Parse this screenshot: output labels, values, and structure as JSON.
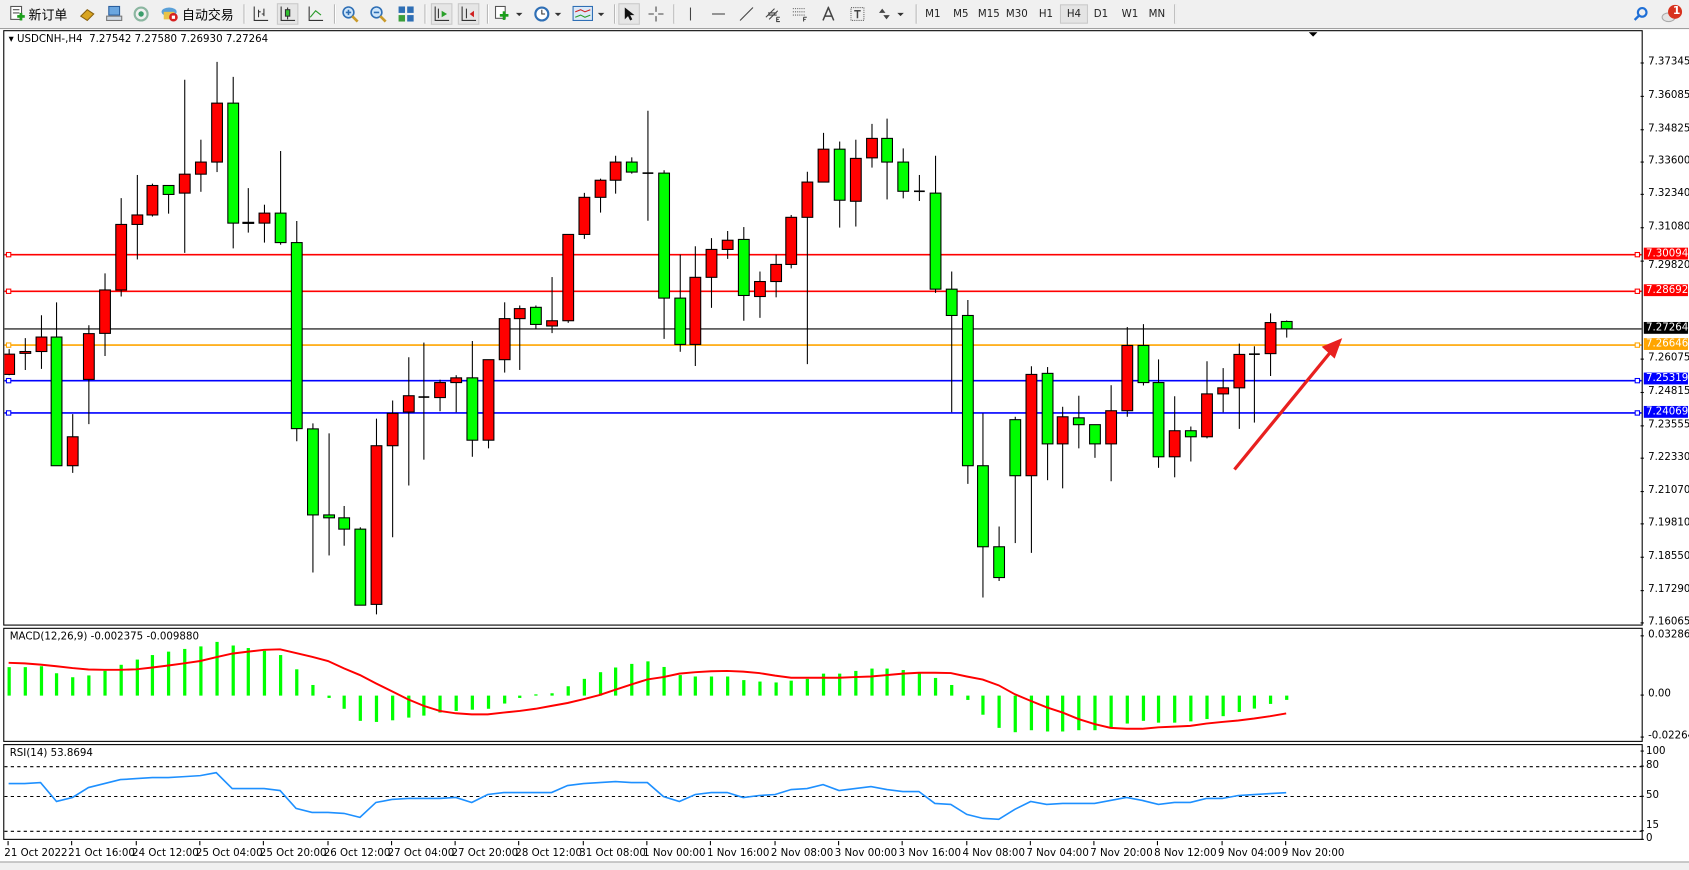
{
  "toolbar": {
    "new_order_label": "新订单",
    "auto_trading_label": "自动交易",
    "timeframes": [
      "M1",
      "M5",
      "M15",
      "M30",
      "H1",
      "H4",
      "D1",
      "W1",
      "MN"
    ],
    "selected_timeframe": "H4",
    "notification_count": "1"
  },
  "chart": {
    "symbol": "USDCNH-,H4",
    "open": "7.27542",
    "high": "7.27580",
    "low": "7.26930",
    "close": "7.27264"
  },
  "price_axis": {
    "ticks": [
      "7.37345",
      "7.36085",
      "7.34825",
      "7.33600",
      "7.32340",
      "7.31080",
      "7.29820",
      "7.26075",
      "7.24815",
      "7.23555",
      "7.22330",
      "7.21070",
      "7.19810",
      "7.18550",
      "7.17290",
      "7.16065"
    ],
    "levels": [
      {
        "label": "7.30094",
        "color": "#ff0000"
      },
      {
        "label": "7.28692",
        "color": "#ff0000"
      },
      {
        "label": "7.27264",
        "color": "#000000"
      },
      {
        "label": "7.26646",
        "color": "#ffa500"
      },
      {
        "label": "7.25319",
        "color": "#0000ff"
      },
      {
        "label": "7.24069",
        "color": "#0000ff"
      }
    ]
  },
  "time_axis": [
    "21 Oct 2022",
    "21 Oct 16:00",
    "24 Oct 12:00",
    "25 Oct 04:00",
    "25 Oct 20:00",
    "26 Oct 12:00",
    "27 Oct 04:00",
    "27 Oct 20:00",
    "28 Oct 12:00",
    "31 Oct 08:00",
    "1 Nov 00:00",
    "1 Nov 16:00",
    "2 Nov 08:00",
    "3 Nov 00:00",
    "3 Nov 16:00",
    "4 Nov 08:00",
    "7 Nov 04:00",
    "7 Nov 20:00",
    "8 Nov 12:00",
    "9 Nov 04:00",
    "9 Nov 20:00"
  ],
  "macd": {
    "title": "MACD(12,26,9) -0.002375 -0.009880",
    "axis": [
      "0.032861",
      "0.00",
      "-0.022641"
    ]
  },
  "rsi": {
    "title": "RSI(14) 53.8694",
    "axis": [
      "100",
      "80",
      "50",
      "15",
      "0"
    ]
  },
  "colors": {
    "bull": "#ff0000",
    "bear": "#00ff00",
    "macd_hist": "#00ff00",
    "macd_signal": "#ff0000",
    "rsi": "#1e90ff",
    "arrow": "#e8201f"
  },
  "chart_data": [
    {
      "type": "candlestick",
      "ylim": [
        7.16065,
        7.37345
      ],
      "columns": [
        "open",
        "high",
        "low",
        "close"
      ],
      "ohlc": [
        [
          7.2553,
          7.2649,
          7.255,
          7.263
        ],
        [
          7.2633,
          7.2691,
          7.257,
          7.264
        ],
        [
          7.264,
          7.2778,
          7.2574,
          7.2695
        ],
        [
          7.2695,
          7.2827,
          7.2206,
          7.2206
        ],
        [
          7.2206,
          7.2402,
          7.2179,
          7.2316
        ],
        [
          7.2534,
          7.274,
          7.2364,
          7.2708
        ],
        [
          7.2709,
          7.2937,
          7.2623,
          7.2874
        ],
        [
          7.2874,
          7.3223,
          7.2849,
          7.3123
        ],
        [
          7.3123,
          7.3311,
          7.299,
          7.3159
        ],
        [
          7.3159,
          7.3278,
          7.3153,
          7.3271
        ],
        [
          7.3271,
          7.3271,
          7.3164,
          7.3237
        ],
        [
          7.3242,
          7.3673,
          7.3015,
          7.3314
        ],
        [
          7.3314,
          7.3445,
          7.3247,
          7.336
        ],
        [
          7.336,
          7.3741,
          7.3322,
          7.3584
        ],
        [
          7.3584,
          7.3684,
          7.3032,
          7.3128
        ],
        [
          7.313,
          7.3261,
          7.3092,
          7.3131
        ],
        [
          7.3128,
          7.3198,
          7.3054,
          7.3166
        ],
        [
          7.3166,
          7.3402,
          7.3046,
          7.3054
        ],
        [
          7.3054,
          7.3136,
          7.2299,
          7.2347
        ],
        [
          7.2346,
          7.2367,
          7.18,
          7.2019
        ],
        [
          7.2019,
          7.2329,
          7.1865,
          7.2008
        ],
        [
          7.2008,
          7.2053,
          7.1902,
          7.1965
        ],
        [
          7.1965,
          7.1972,
          7.1676,
          7.1676
        ],
        [
          7.1679,
          7.2385,
          7.1641,
          7.2282
        ],
        [
          7.2282,
          7.2454,
          7.1934,
          7.2405
        ],
        [
          7.241,
          7.2618,
          7.2131,
          7.2472
        ],
        [
          7.2467,
          7.2674,
          7.2229,
          7.2467
        ],
        [
          7.2465,
          7.2533,
          7.2413,
          7.2522
        ],
        [
          7.2522,
          7.255,
          7.2409,
          7.254
        ],
        [
          7.254,
          7.268,
          7.224,
          7.2303
        ],
        [
          7.2303,
          7.2609,
          7.2272,
          7.2609
        ],
        [
          7.2609,
          7.2827,
          7.256,
          7.2765
        ],
        [
          7.2765,
          7.2815,
          7.257,
          7.2803
        ],
        [
          7.2808,
          7.2815,
          7.2725,
          7.2743
        ],
        [
          7.2737,
          7.2923,
          7.271,
          7.2757
        ],
        [
          7.2757,
          7.3085,
          7.2749,
          7.3085
        ],
        [
          7.3085,
          7.3243,
          7.3068,
          7.3226
        ],
        [
          7.3226,
          7.3297,
          7.3168,
          7.3291
        ],
        [
          7.3291,
          7.3384,
          7.324,
          7.336
        ],
        [
          7.336,
          7.3378,
          7.3316,
          7.3322
        ],
        [
          7.3318,
          7.3555,
          7.3137,
          7.3318
        ],
        [
          7.3318,
          7.3329,
          7.2688,
          7.2843
        ],
        [
          7.2843,
          7.3008,
          7.2639,
          7.2667
        ],
        [
          7.2667,
          7.304,
          7.2585,
          7.2922
        ],
        [
          7.2922,
          7.3071,
          7.2806,
          7.3028
        ],
        [
          7.3028,
          7.3098,
          7.2992,
          7.3063
        ],
        [
          7.3066,
          7.3113,
          7.2757,
          7.2853
        ],
        [
          7.2849,
          7.2944,
          7.2768,
          7.2906
        ],
        [
          7.2906,
          7.3008,
          7.2846,
          7.2971
        ],
        [
          7.2971,
          7.3159,
          7.2956,
          7.315
        ],
        [
          7.315,
          7.3323,
          7.2592,
          7.3284
        ],
        [
          7.3284,
          7.3471,
          7.3284,
          7.3409
        ],
        [
          7.3409,
          7.3438,
          7.3111,
          7.3215
        ],
        [
          7.3211,
          7.3445,
          7.3115,
          7.3374
        ],
        [
          7.3376,
          7.3505,
          7.3339,
          7.345
        ],
        [
          7.345,
          7.3525,
          7.3218,
          7.336
        ],
        [
          7.336,
          7.3412,
          7.3222,
          7.3249
        ],
        [
          7.3249,
          7.3311,
          7.3212,
          7.3249
        ],
        [
          7.3242,
          7.3384,
          7.2863,
          7.2877
        ],
        [
          7.2877,
          7.2944,
          7.2409,
          7.2777
        ],
        [
          7.2777,
          7.2836,
          7.2137,
          7.2206
        ],
        [
          7.2206,
          7.2405,
          7.1705,
          7.1898
        ],
        [
          7.1898,
          7.1975,
          7.1768,
          7.1781
        ],
        [
          7.2381,
          7.2392,
          7.1912,
          7.2168
        ],
        [
          7.2168,
          7.2584,
          7.1875,
          7.2553
        ],
        [
          7.2557,
          7.2581,
          7.2151,
          7.2289
        ],
        [
          7.2289,
          7.243,
          7.212,
          7.2392
        ],
        [
          7.2388,
          7.2472,
          7.2272,
          7.2362
        ],
        [
          7.2362,
          7.2362,
          7.2236,
          7.2289
        ],
        [
          7.2289,
          7.2512,
          7.2147,
          7.2415
        ],
        [
          7.2415,
          7.2733,
          7.2392,
          7.2663
        ],
        [
          7.2663,
          7.2744,
          7.2511,
          7.2522
        ],
        [
          7.2522,
          7.261,
          7.2198,
          7.224
        ],
        [
          7.224,
          7.247,
          7.2162,
          7.2339
        ],
        [
          7.2339,
          7.2355,
          7.2222,
          7.2316
        ],
        [
          7.2316,
          7.2603,
          7.231,
          7.2479
        ],
        [
          7.2479,
          7.2577,
          7.2409,
          7.2502
        ],
        [
          7.2502,
          7.267,
          7.2346,
          7.2629
        ],
        [
          7.263,
          7.266,
          7.237,
          7.263
        ],
        [
          7.2632,
          7.2785,
          7.2547,
          7.275
        ],
        [
          7.27542,
          7.2758,
          7.2693,
          7.27264
        ]
      ],
      "horizontal_lines": [
        7.30094,
        7.28692,
        7.27264,
        7.26646,
        7.25319,
        7.24069
      ],
      "annotation": "red arrow pointing up-right toward the last candles"
    },
    {
      "type": "bar+line",
      "name": "MACD(12,26,9)",
      "ylim": [
        -0.022641,
        0.032861
      ],
      "histogram": [
        0.0158,
        0.0158,
        0.0163,
        0.0124,
        0.0102,
        0.0112,
        0.0138,
        0.0171,
        0.02,
        0.0225,
        0.0244,
        0.0259,
        0.0273,
        0.0298,
        0.0278,
        0.0264,
        0.0249,
        0.0225,
        0.0146,
        0.0059,
        -0.0013,
        -0.0073,
        -0.014,
        -0.0146,
        -0.0137,
        -0.0122,
        -0.0111,
        -0.0094,
        -0.0085,
        -0.0078,
        -0.0073,
        -0.0044,
        -0.0013,
        0.0007,
        0.0013,
        0.0052,
        0.0093,
        0.013,
        0.0156,
        0.0176,
        0.019,
        0.0159,
        0.0114,
        0.0106,
        0.0106,
        0.0106,
        0.0086,
        0.0078,
        0.0073,
        0.0083,
        0.0093,
        0.0122,
        0.0122,
        0.0137,
        0.015,
        0.015,
        0.0142,
        0.013,
        0.0098,
        0.0059,
        -0.0024,
        -0.0106,
        -0.0179,
        -0.0203,
        -0.0192,
        -0.0199,
        -0.0199,
        -0.0192,
        -0.0192,
        -0.0182,
        -0.0155,
        -0.014,
        -0.015,
        -0.015,
        -0.0143,
        -0.013,
        -0.0114,
        -0.0091,
        -0.0072,
        -0.0046,
        -0.002375
      ],
      "signal": [
        0.0182,
        0.0179,
        0.0172,
        0.0163,
        0.0153,
        0.0145,
        0.0143,
        0.0143,
        0.0146,
        0.0156,
        0.0167,
        0.0179,
        0.0192,
        0.0213,
        0.0233,
        0.0244,
        0.0254,
        0.0257,
        0.0236,
        0.0215,
        0.0192,
        0.0151,
        0.0114,
        0.0068,
        0.0024,
        -0.002,
        -0.0057,
        -0.0085,
        -0.0098,
        -0.0104,
        -0.0104,
        -0.0094,
        -0.0085,
        -0.0073,
        -0.0057,
        -0.0041,
        -0.002,
        0.0003,
        0.0033,
        0.0062,
        0.009,
        0.0103,
        0.0122,
        0.013,
        0.0135,
        0.0137,
        0.0133,
        0.0125,
        0.0111,
        0.0099,
        0.0099,
        0.0099,
        0.0099,
        0.0103,
        0.0106,
        0.0114,
        0.0122,
        0.0127,
        0.0127,
        0.0125,
        0.0106,
        0.0089,
        0.0057,
        0.0008,
        -0.0029,
        -0.0065,
        -0.0094,
        -0.013,
        -0.0158,
        -0.0179,
        -0.0184,
        -0.0184,
        -0.0176,
        -0.0172,
        -0.0168,
        -0.0155,
        -0.0146,
        -0.0138,
        -0.0127,
        -0.0114,
        -0.00988
      ]
    },
    {
      "type": "line",
      "name": "RSI(14)",
      "ylim": [
        0,
        100
      ],
      "levels": [
        80,
        50,
        15
      ],
      "values": [
        63,
        63,
        64,
        45,
        49,
        59,
        63,
        67,
        68,
        69,
        69,
        70,
        71,
        74,
        58,
        58,
        58,
        56,
        38,
        34,
        34,
        33,
        29,
        44,
        47,
        48,
        48,
        48,
        49,
        44,
        52,
        54,
        54,
        54,
        54,
        61,
        63,
        64,
        65,
        64,
        64,
        50,
        45,
        52,
        54,
        54,
        49,
        51,
        52,
        57,
        58,
        62,
        56,
        58,
        60,
        57,
        55,
        55,
        43,
        42,
        32,
        28,
        27,
        37,
        45,
        42,
        43,
        43,
        43,
        46,
        49,
        46,
        42,
        44,
        44,
        48,
        48,
        51,
        52,
        53,
        53.87
      ]
    }
  ]
}
